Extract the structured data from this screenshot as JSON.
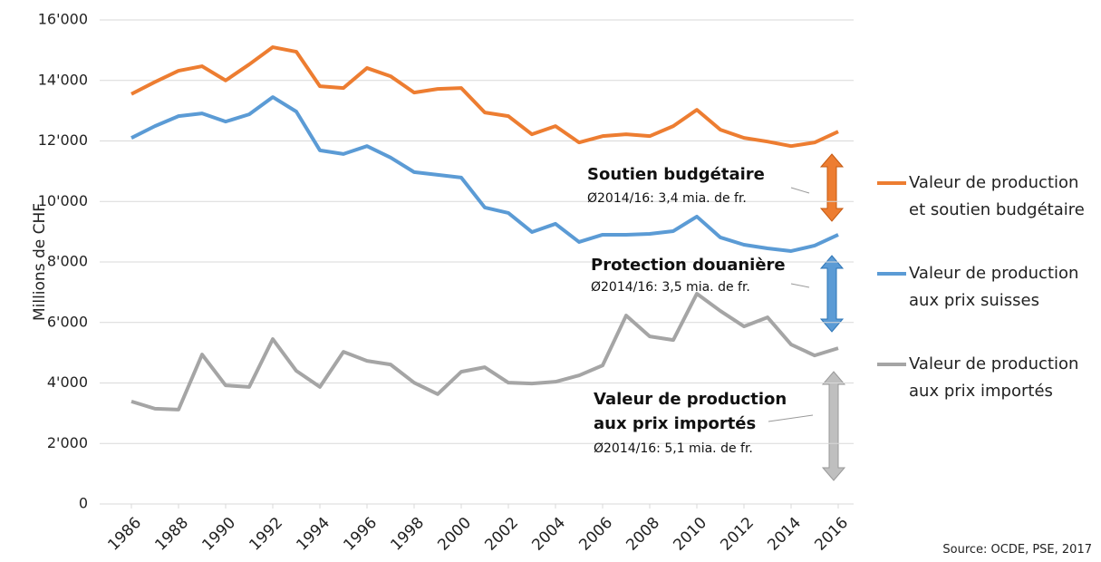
{
  "chart_data": {
    "type": "line",
    "y_label": "Millions de CHF",
    "source": "Source: OCDE, PSE, 2017",
    "x": [
      1986,
      1987,
      1988,
      1989,
      1990,
      1991,
      1992,
      1993,
      1994,
      1995,
      1996,
      1997,
      1998,
      1999,
      2000,
      2001,
      2002,
      2003,
      2004,
      2005,
      2006,
      2007,
      2008,
      2009,
      2010,
      2011,
      2012,
      2013,
      2014,
      2015,
      2016
    ],
    "xlim": [
      1986,
      2016
    ],
    "xticks": [
      1986,
      1988,
      1990,
      1992,
      1994,
      1996,
      1998,
      2000,
      2002,
      2004,
      2006,
      2008,
      2010,
      2012,
      2014,
      2016
    ],
    "ylim": [
      0,
      16000
    ],
    "yticks": [
      0,
      {
        "value": 2000,
        "label": "2'000"
      },
      {
        "value": 4000,
        "label": "4'000"
      },
      {
        "value": 6000,
        "label": "6'000"
      },
      {
        "value": 8000,
        "label": "8'000"
      },
      {
        "value": 10000,
        "label": "10'000"
      },
      {
        "value": 12000,
        "label": "12'000"
      },
      {
        "value": 14000,
        "label": "14'000"
      },
      {
        "value": 16000,
        "label": "16'000"
      }
    ],
    "grid": true,
    "legend": "right",
    "series": [
      {
        "name": "Valeur de production\net soutien budgétaire",
        "color": "#ed7d31",
        "values": [
          13550,
          13950,
          14320,
          14470,
          14000,
          14530,
          15100,
          14950,
          13810,
          13750,
          14410,
          14140,
          13600,
          13720,
          13750,
          12940,
          12820,
          12220,
          12490,
          11950,
          12160,
          12220,
          12160,
          12490,
          13030,
          12370,
          12100,
          11980,
          11830,
          11950,
          12310
        ]
      },
      {
        "name": "Valeur de production\naux prix suisses",
        "color": "#5b9bd5",
        "values": [
          12100,
          12490,
          12820,
          12910,
          12640,
          12880,
          13450,
          12970,
          11690,
          11570,
          11830,
          11450,
          10970,
          10880,
          10790,
          9800,
          9620,
          8990,
          9260,
          8660,
          8900,
          8900,
          8930,
          9020,
          9500,
          8810,
          8570,
          8450,
          8360,
          8540,
          8900
        ]
      },
      {
        "name": "Valeur de production\naux prix importés",
        "color": "#a5a5a5",
        "values": [
          3390,
          3150,
          3120,
          4940,
          3920,
          3870,
          5450,
          4400,
          3870,
          5030,
          4730,
          4610,
          4010,
          3630,
          4370,
          4520,
          4010,
          3980,
          4040,
          4250,
          4580,
          6230,
          5540,
          5420,
          6950,
          6380,
          5870,
          6170,
          5270,
          4910,
          5150
        ]
      }
    ],
    "annotations": [
      {
        "title": "Soutien budgétaire",
        "text": "Ø2014/16: 3,4 mia. de fr."
      },
      {
        "title": "Protection douanière",
        "text": "Ø2014/16: 3,5 mia. de fr."
      },
      {
        "title": "Valeur de production\naux prix importés",
        "text": "Ø2014/16: 5,1 mia. de fr."
      }
    ]
  }
}
